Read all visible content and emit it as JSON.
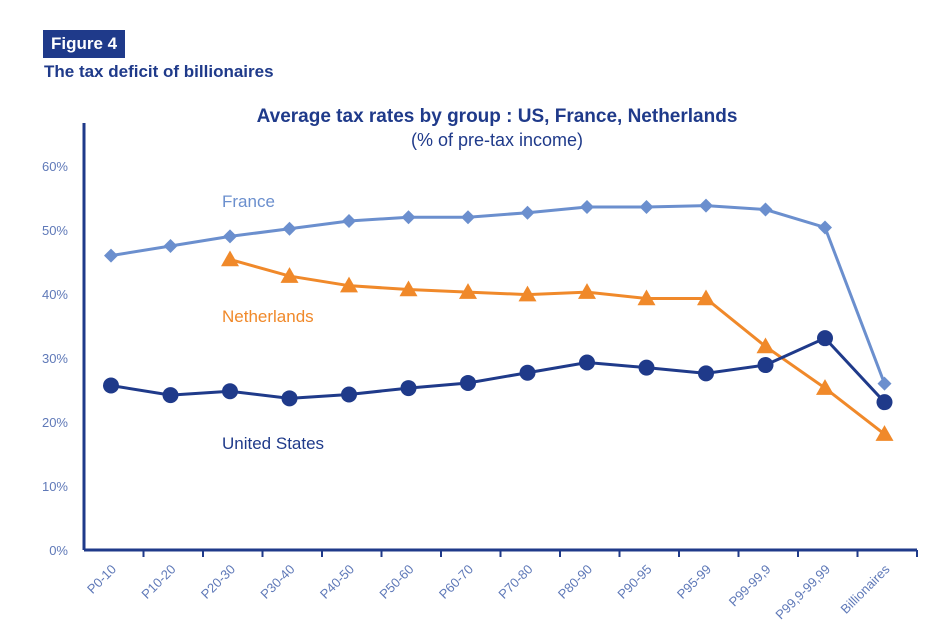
{
  "figure": {
    "label": "Figure 4",
    "subtitle": "The tax deficit of billionaires"
  },
  "chart_data": {
    "type": "line",
    "title": "Average tax rates by group : US, France, Netherlands",
    "subtitle": "(% of pre-tax income)",
    "categories": [
      "P0-10",
      "P10-20",
      "P20-30",
      "P30-40",
      "P40-50",
      "P50-60",
      "P60-70",
      "P70-80",
      "P80-90",
      "P90-95",
      "P95-99",
      "P99-99,9",
      "P99,9-99,99",
      "Billionaires"
    ],
    "y_ticks": [
      "0%",
      "10%",
      "20%",
      "30%",
      "40%",
      "50%",
      "60%"
    ],
    "ylim": [
      0,
      60
    ],
    "grid": false,
    "series": [
      {
        "name": "France",
        "color": "#6b8fce",
        "marker": "diamond",
        "values": [
          46,
          47.5,
          49,
          50.2,
          51.4,
          52,
          52,
          52.7,
          53.6,
          53.6,
          53.8,
          53.2,
          50.4,
          26
        ]
      },
      {
        "name": "Netherlands",
        "color": "#f0892a",
        "marker": "triangle",
        "values": [
          null,
          null,
          45.4,
          42.8,
          41.3,
          40.7,
          40.3,
          39.9,
          40.3,
          39.3,
          39.3,
          31.8,
          25.3,
          18.1
        ]
      },
      {
        "name": "United States",
        "color": "#1f3a8a",
        "marker": "circle",
        "values": [
          25.7,
          24.2,
          24.8,
          23.7,
          24.3,
          25.3,
          26.1,
          27.7,
          29.3,
          28.5,
          27.6,
          28.9,
          33.1,
          23.1
        ]
      }
    ]
  }
}
